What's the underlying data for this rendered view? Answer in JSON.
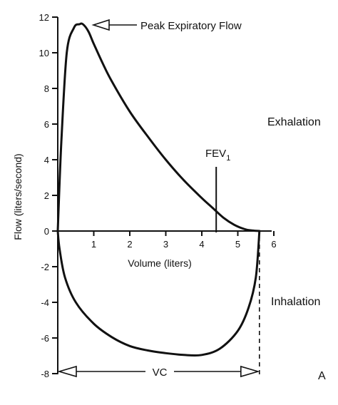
{
  "chart_data": {
    "type": "line",
    "xlabel": "Volume (liters)",
    "ylabel": "Flow (liters/second)",
    "xlim": [
      0,
      6
    ],
    "ylim": [
      -8,
      12
    ],
    "x_ticks": [
      "1",
      "2",
      "3",
      "4",
      "5",
      "6"
    ],
    "y_ticks": [
      "12",
      "10",
      "8",
      "6",
      "4",
      "2",
      "0",
      "-2",
      "-4",
      "-6",
      "-8"
    ],
    "grid": false,
    "series": [
      {
        "name": "Exhalation",
        "x": [
          0,
          0.1,
          0.25,
          0.45,
          0.6,
          0.7,
          0.85,
          1.0,
          1.25,
          1.5,
          2.0,
          2.5,
          3.0,
          3.5,
          4.0,
          4.3,
          4.6,
          4.9,
          5.2,
          5.4,
          5.6
        ],
        "y": [
          0,
          5.0,
          10.0,
          11.4,
          11.6,
          11.6,
          11.2,
          10.5,
          9.4,
          8.4,
          6.7,
          5.3,
          4.0,
          2.85,
          1.85,
          1.3,
          0.75,
          0.35,
          0.1,
          0.03,
          0
        ]
      },
      {
        "name": "Inhalation",
        "x": [
          0,
          0.05,
          0.2,
          0.5,
          1.0,
          1.5,
          2.0,
          2.5,
          3.0,
          3.5,
          4.0,
          4.5,
          5.0,
          5.3,
          5.5,
          5.6
        ],
        "y": [
          0,
          -1.0,
          -2.6,
          -4.0,
          -5.2,
          -5.95,
          -6.45,
          -6.7,
          -6.85,
          -6.95,
          -6.95,
          -6.6,
          -5.6,
          -4.3,
          -2.6,
          0
        ]
      }
    ],
    "annotations": {
      "pef": "Peak Expiratory Flow",
      "fev1_main": "FEV",
      "fev1_sub": "1",
      "fev1_x": 4.4,
      "vc": "VC",
      "vc_range": [
        0,
        5.6
      ],
      "exhalation": "Exhalation",
      "inhalation": "Inhalation",
      "panel": "A"
    }
  }
}
